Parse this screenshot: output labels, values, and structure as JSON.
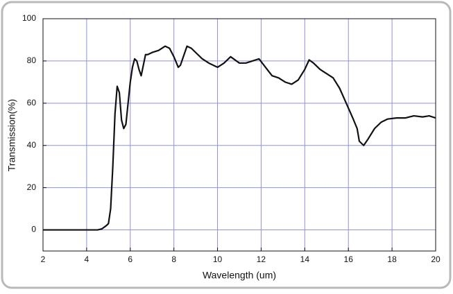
{
  "chart_data": {
    "type": "line",
    "xlabel": "Wavelength (um)",
    "ylabel": "Transmission(%)",
    "x": [
      2,
      4.5,
      4.7,
      4.9,
      5.0,
      5.1,
      5.2,
      5.3,
      5.4,
      5.5,
      5.6,
      5.7,
      5.8,
      5.9,
      6.0,
      6.1,
      6.2,
      6.3,
      6.4,
      6.5,
      6.6,
      6.7,
      6.8,
      7.0,
      7.3,
      7.6,
      7.8,
      8.0,
      8.2,
      8.3,
      8.5,
      8.6,
      8.8,
      9.0,
      9.3,
      9.6,
      10.0,
      10.3,
      10.6,
      11.0,
      11.3,
      11.6,
      11.9,
      12.2,
      12.5,
      12.8,
      13.1,
      13.4,
      13.7,
      14.0,
      14.2,
      14.4,
      14.7,
      15.0,
      15.3,
      15.6,
      15.9,
      16.2,
      16.4,
      16.5,
      16.7,
      16.9,
      17.2,
      17.5,
      17.8,
      18.2,
      18.6,
      19.0,
      19.4,
      19.7,
      20.0
    ],
    "values": [
      0,
      0,
      0.5,
      2,
      3,
      10,
      30,
      55,
      68,
      65,
      52,
      48,
      50,
      60,
      70,
      77,
      81,
      80,
      76,
      73,
      78,
      83,
      83,
      84,
      85,
      87,
      86,
      82,
      77,
      78,
      84,
      87,
      86,
      84,
      81,
      79,
      77,
      79,
      82,
      79,
      79,
      80,
      81,
      77,
      73,
      72,
      70,
      69,
      71,
      76,
      80.5,
      79,
      76,
      74,
      72,
      67,
      60,
      53,
      48,
      42,
      40,
      43,
      48,
      51,
      52.5,
      53,
      53,
      54,
      53.5,
      54,
      53
    ],
    "color": "#111111",
    "xlim": [
      2,
      20
    ],
    "ylim": [
      -10,
      100
    ],
    "xticks": [
      2,
      4,
      6,
      8,
      10,
      12,
      14,
      16,
      18,
      20
    ],
    "yticks": [
      0,
      20,
      40,
      60,
      80,
      100
    ],
    "grid": true
  }
}
